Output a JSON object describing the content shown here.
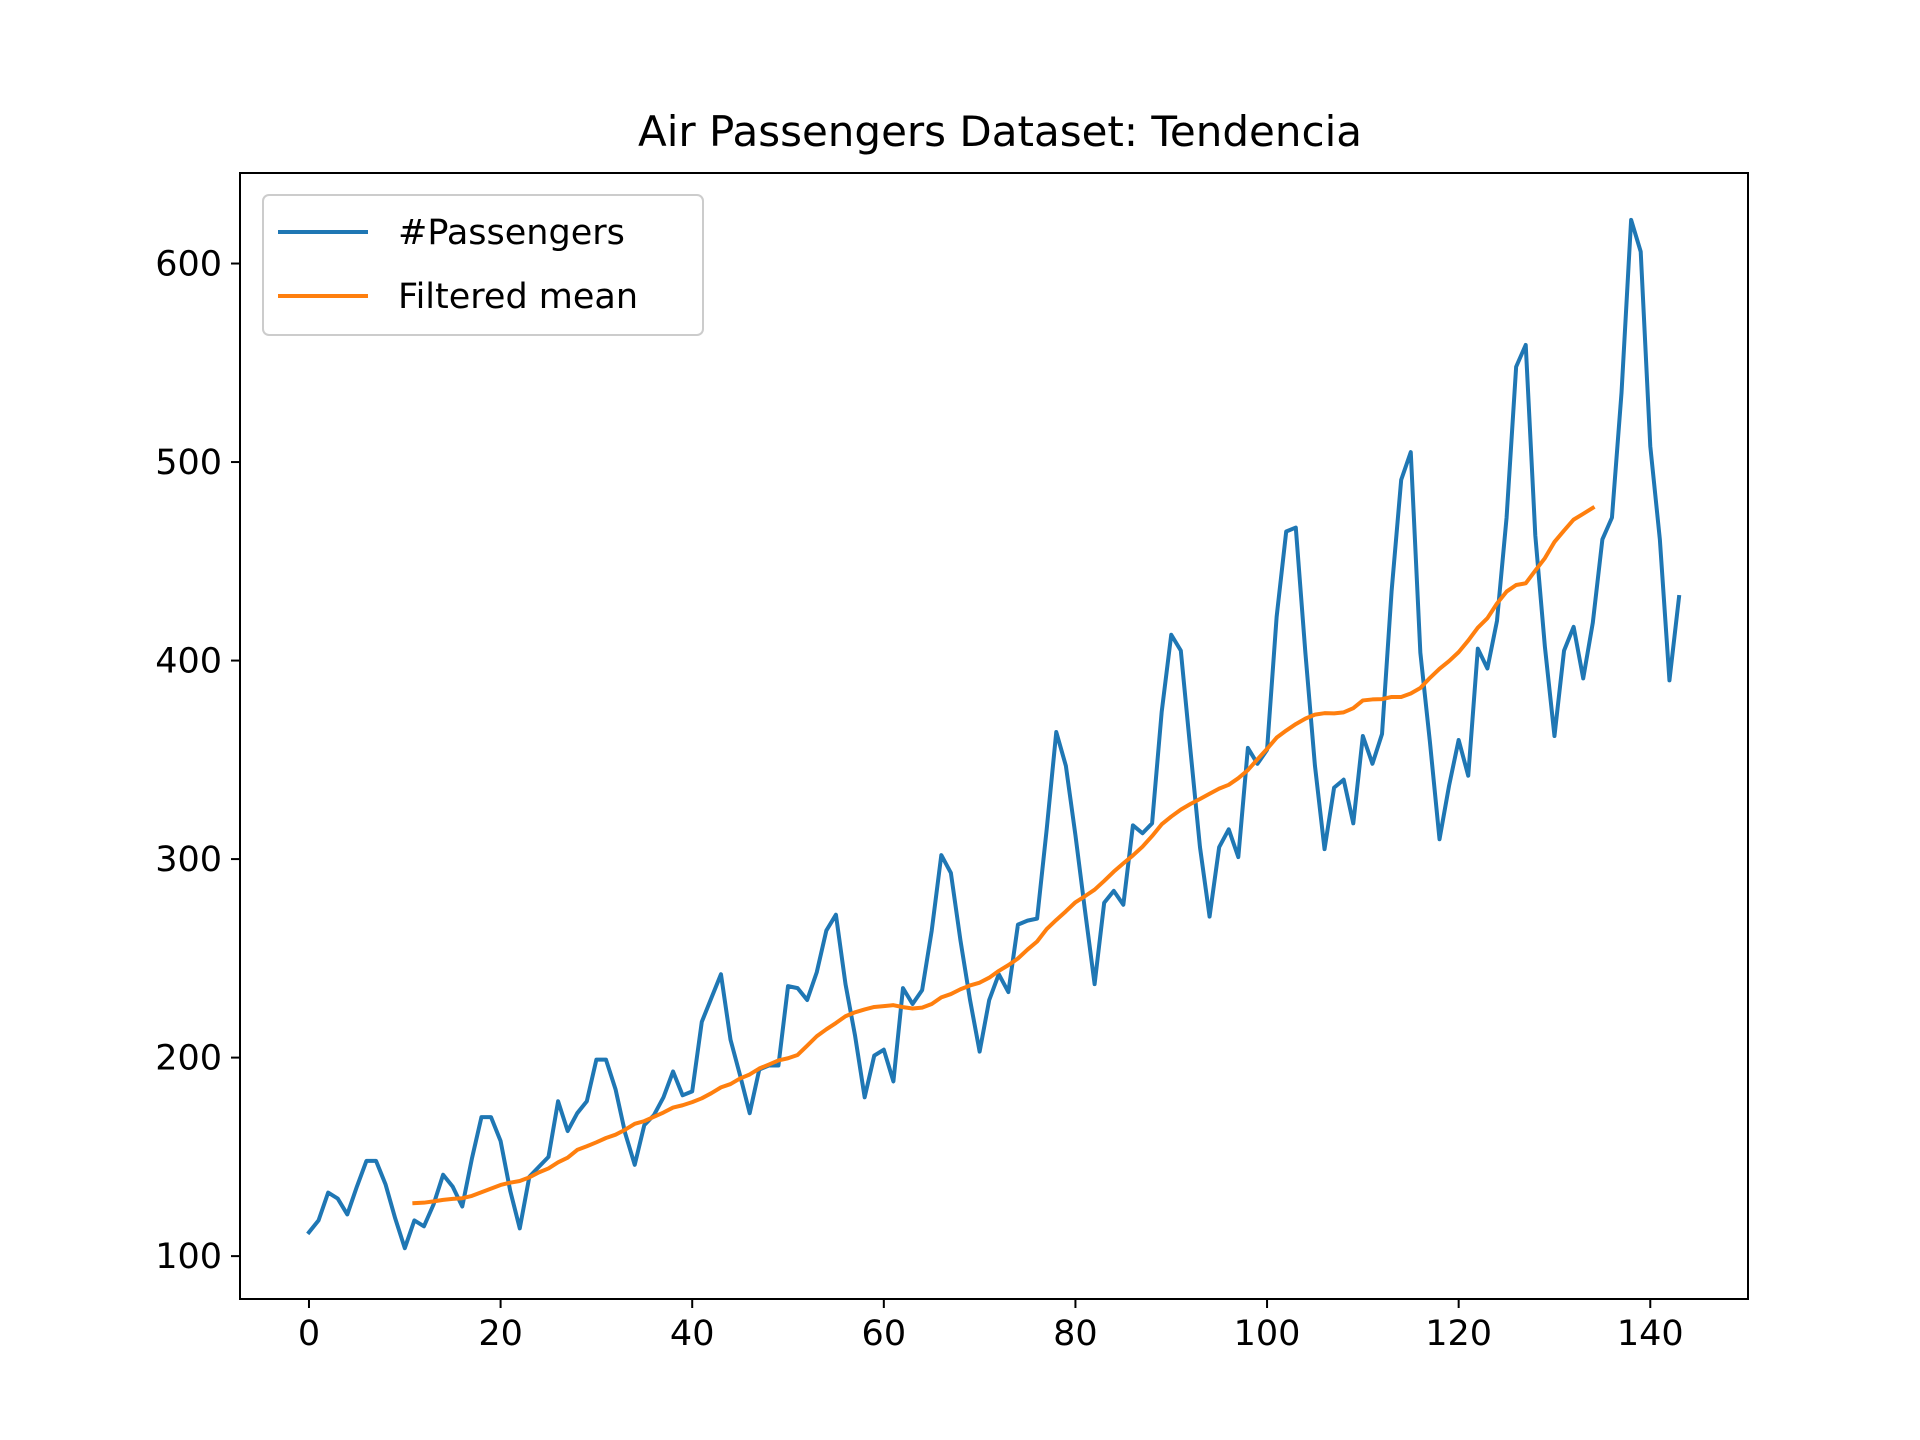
{
  "chart_data": {
    "type": "line",
    "title": "Air Passengers Dataset: Tendencia",
    "xlabel": "",
    "ylabel": "",
    "xlim": [
      -7.2,
      150.2
    ],
    "ylim": [
      78.4,
      645.6
    ],
    "xticks": [
      0,
      20,
      40,
      60,
      80,
      100,
      120,
      140
    ],
    "yticks": [
      100,
      200,
      300,
      400,
      500,
      600
    ],
    "grid": false,
    "legend_position": "top-left",
    "colors": {
      "passengers": "#1f77b4",
      "filtered": "#ff7f0e"
    },
    "series": [
      {
        "name": "#Passengers",
        "x_start": 0,
        "values": [
          112,
          118,
          132,
          129,
          121,
          135,
          148,
          148,
          136,
          119,
          104,
          118,
          115,
          126,
          141,
          135,
          125,
          149,
          170,
          170,
          158,
          133,
          114,
          140,
          145,
          150,
          178,
          163,
          172,
          178,
          199,
          199,
          184,
          162,
          146,
          166,
          171,
          180,
          193,
          181,
          183,
          218,
          230,
          242,
          209,
          191,
          172,
          194,
          196,
          196,
          236,
          235,
          229,
          243,
          264,
          272,
          237,
          211,
          180,
          201,
          204,
          188,
          235,
          227,
          234,
          264,
          302,
          293,
          259,
          229,
          203,
          229,
          242,
          233,
          267,
          269,
          270,
          315,
          364,
          347,
          312,
          274,
          237,
          278,
          284,
          277,
          317,
          313,
          318,
          374,
          413,
          405,
          355,
          306,
          271,
          306,
          315,
          301,
          356,
          348,
          355,
          422,
          465,
          467,
          404,
          347,
          305,
          336,
          340,
          318,
          362,
          348,
          363,
          435,
          491,
          505,
          404,
          359,
          310,
          337,
          360,
          342,
          406,
          396,
          420,
          472,
          548,
          559,
          463,
          407,
          362,
          405,
          417,
          391,
          419,
          461,
          472,
          535,
          622,
          606,
          508,
          461,
          390,
          432
        ]
      },
      {
        "name": "Filtered mean",
        "x_start": 11,
        "values": [
          126.67,
          126.92,
          127.58,
          128.33,
          128.83,
          129.17,
          130.33,
          132.17,
          134.0,
          135.83,
          137.0,
          137.83,
          139.67,
          142.17,
          144.17,
          147.25,
          149.58,
          153.5,
          155.33,
          157.33,
          159.5,
          161.17,
          163.67,
          166.67,
          168.0,
          170.17,
          172.33,
          174.83,
          176.0,
          177.58,
          179.5,
          182.08,
          185.0,
          186.67,
          189.5,
          191.5,
          194.5,
          196.5,
          198.58,
          199.67,
          201.33,
          206.0,
          210.75,
          214.25,
          217.42,
          220.83,
          222.83,
          224.25,
          225.5,
          225.92,
          226.42,
          225.42,
          224.75,
          225.17,
          227.0,
          230.33,
          232.0,
          234.42,
          236.33,
          237.75,
          240.25,
          243.67,
          246.58,
          249.92,
          254.42,
          258.5,
          264.75,
          269.33,
          273.67,
          278.25,
          281.33,
          284.58,
          289.0,
          293.67,
          297.83,
          301.83,
          306.25,
          311.58,
          317.5,
          321.42,
          324.92,
          327.75,
          330.25,
          332.92,
          335.5,
          337.42,
          340.75,
          344.83,
          350.25,
          355.5,
          361.17,
          364.75,
          368.0,
          370.75,
          372.75,
          373.5,
          373.42,
          373.92,
          376.0,
          379.92,
          380.42,
          380.58,
          381.67,
          381.67,
          383.42,
          386.17,
          391.25,
          395.83,
          399.75,
          404.25,
          410.08,
          416.58,
          421.33,
          428.75,
          434.75,
          438.08,
          438.92,
          445.33,
          451.58,
          459.75,
          465.5,
          471.0,
          473.92,
          476.92
        ]
      }
    ]
  }
}
